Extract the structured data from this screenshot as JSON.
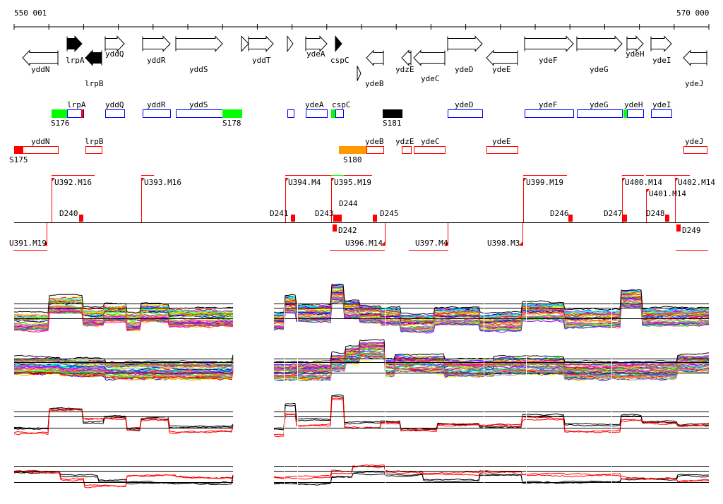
{
  "ruler": {
    "start_label": "550 001",
    "end_label": "570 000"
  },
  "genes": [
    "yddN",
    "lrpA",
    "lrpB",
    "yddQ",
    "yddR",
    "yddS",
    "yddT",
    "ydeA",
    "cspC",
    "ydeB",
    "ydzE",
    "ydeC",
    "ydeD",
    "ydeE",
    "ydeF",
    "ydeG",
    "ydeH",
    "ydeI",
    "ydeJ"
  ],
  "forward_features": [
    "lrpA",
    "yddQ",
    "yddR",
    "yddS",
    "ydeA",
    "cspC",
    "ydeD",
    "ydeF",
    "ydeG",
    "ydeH",
    "ydeI"
  ],
  "reverse_features": [
    "yddN",
    "lrpB",
    "ydeB",
    "ydzE",
    "ydeC",
    "ydeE",
    "ydeJ"
  ],
  "sites": [
    "S176",
    "S178",
    "S181",
    "S175",
    "S180"
  ],
  "segments_upper": [
    "U392.M16",
    "U393.M16",
    "U394.M4",
    "U395.M19",
    "U399.M19",
    "U400.M14",
    "U401.M14",
    "U402.M14"
  ],
  "segments_lower": [
    "U391.M19",
    "U396.M14",
    "U397.M4",
    "U398.M3"
  ],
  "downshifts": [
    "D240",
    "D241",
    "D243",
    "D244",
    "D245",
    "D246",
    "D247",
    "D248",
    "D242",
    "D249"
  ],
  "colors": {
    "forward": "#0000ff",
    "reverse": "#ff0000",
    "site_green": "#00ff00",
    "site_orange": "#ff9900",
    "site_black": "#000000"
  }
}
